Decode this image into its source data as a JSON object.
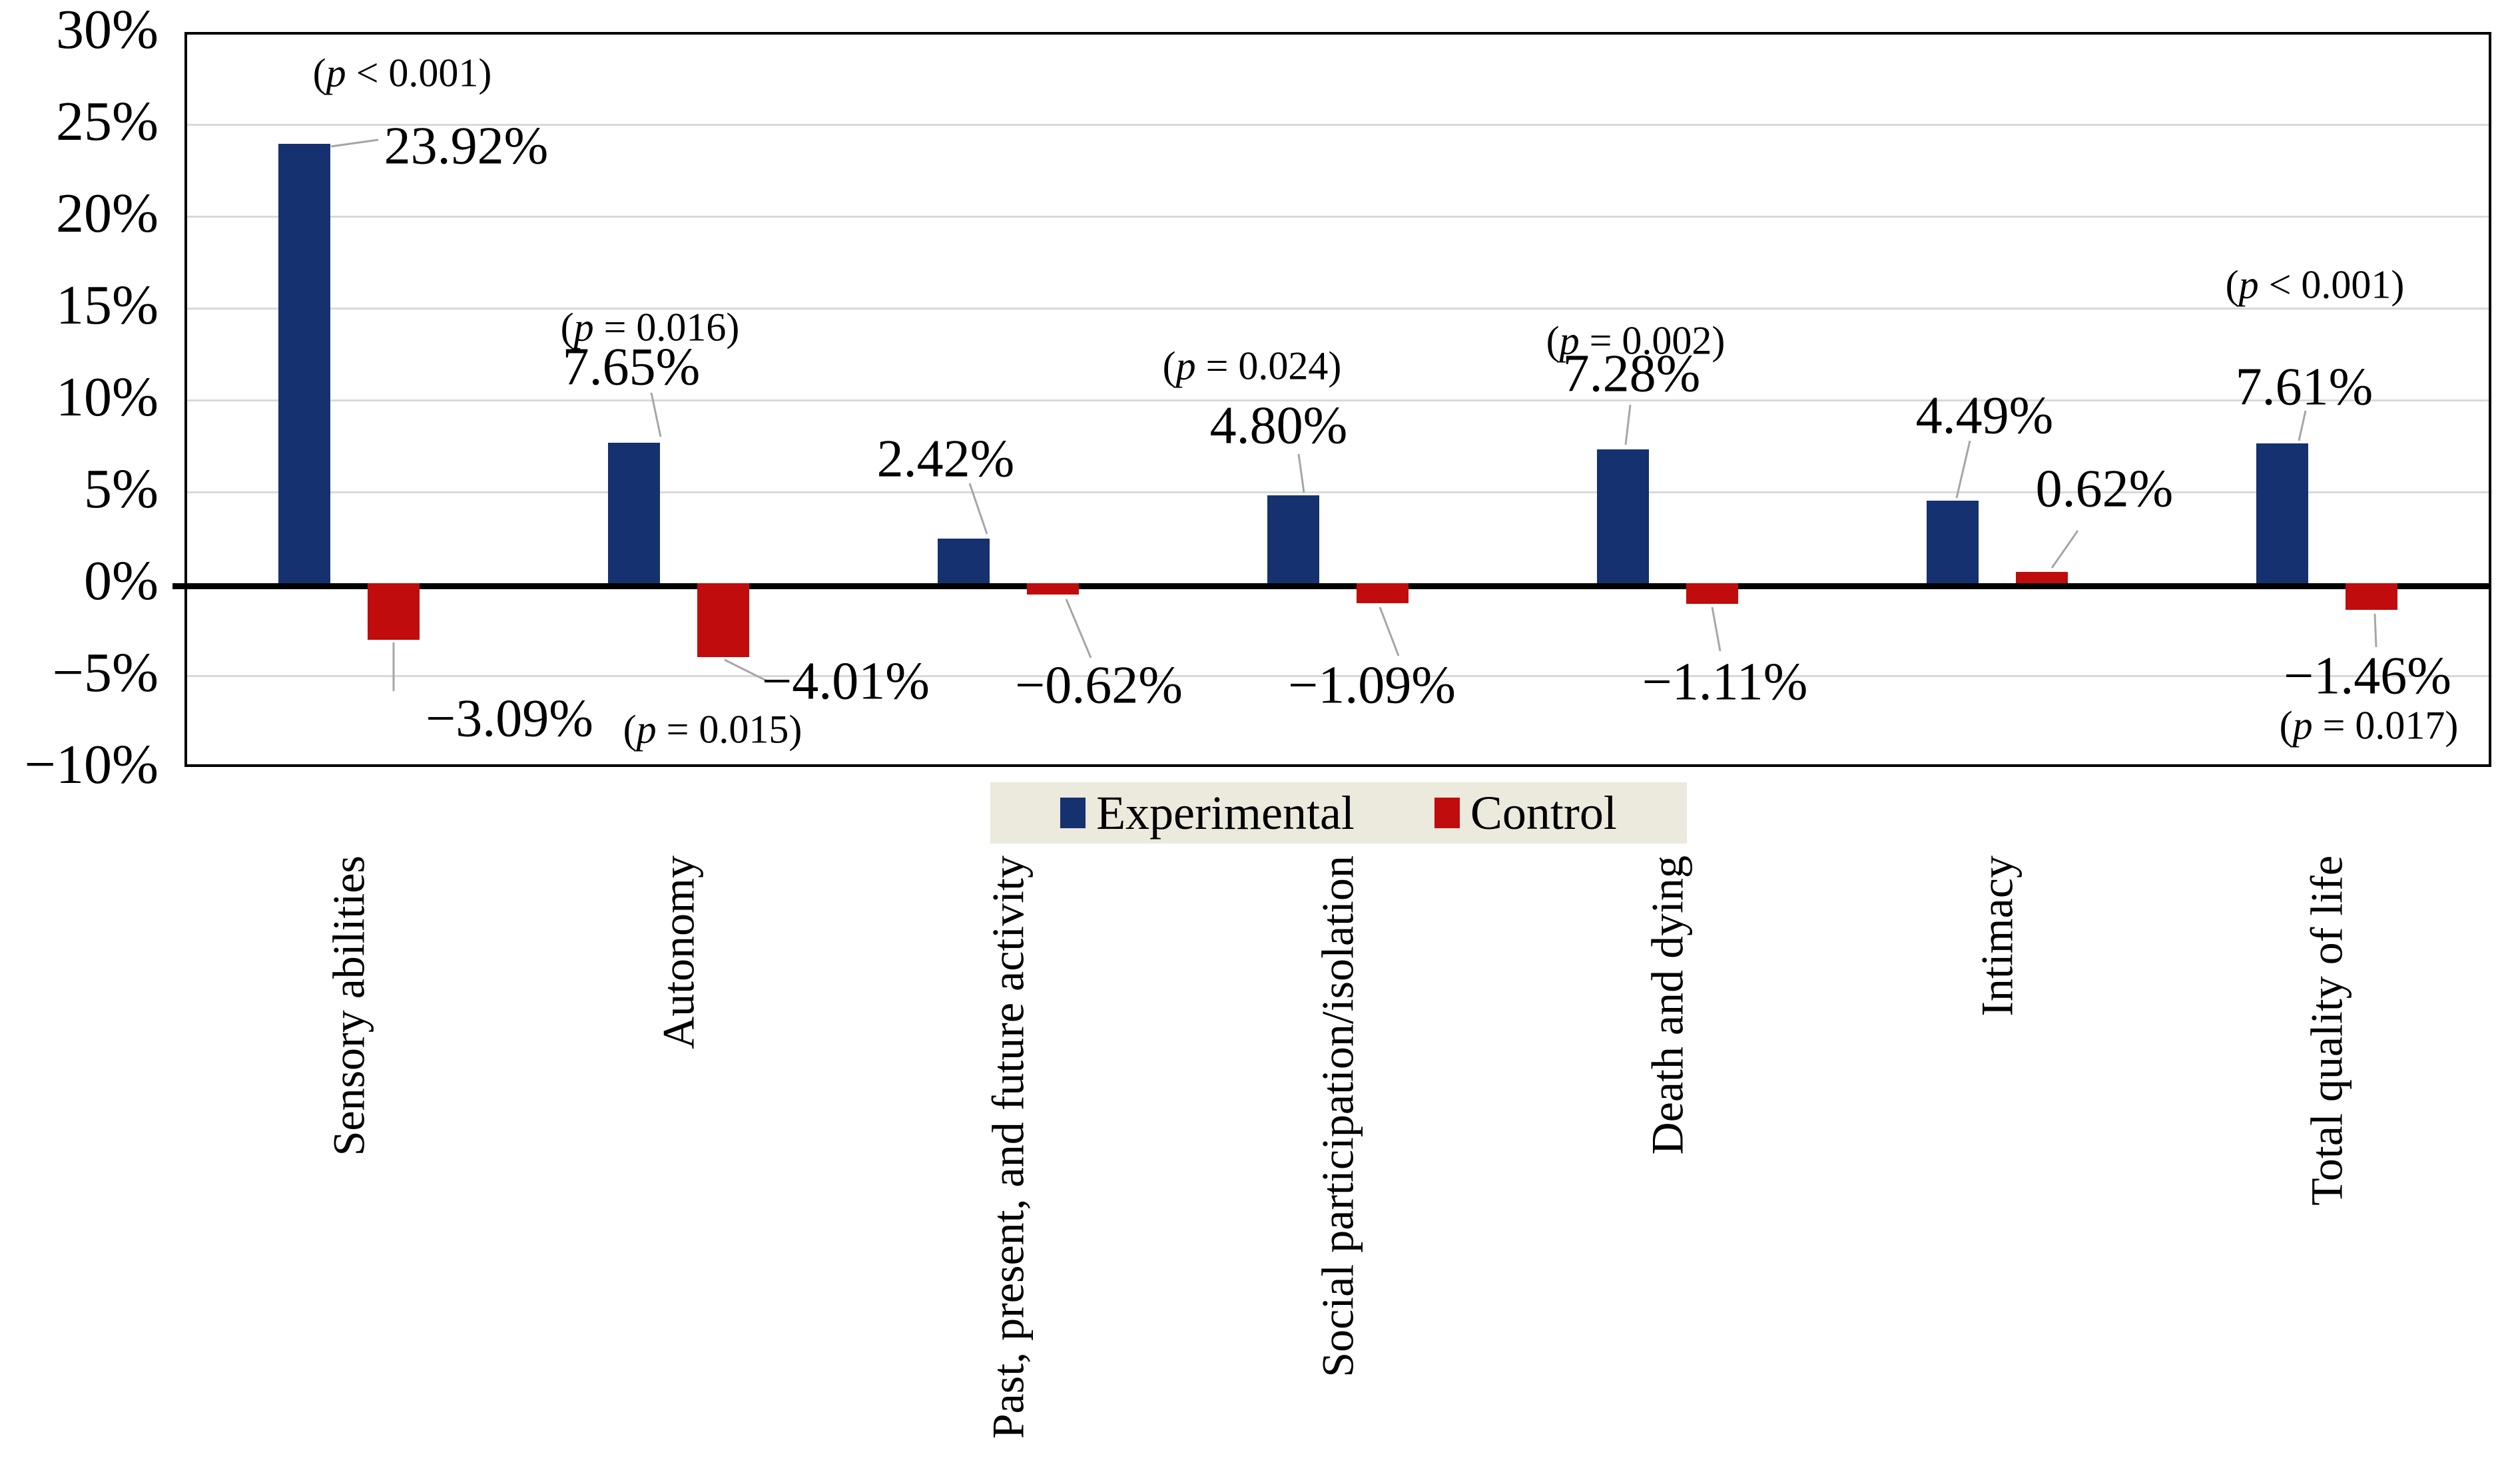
{
  "chart_data": {
    "type": "bar",
    "title": "",
    "xlabel": "",
    "ylabel": "",
    "categories": [
      "Sensory abilities",
      "Autonomy",
      "Past, present, and future activity",
      "Social participation/isolation",
      "Death and dying",
      "Intimacy",
      "Total quality of life"
    ],
    "series": [
      {
        "name": "Experimental",
        "color": "#15316f",
        "values": [
          23.92,
          7.65,
          2.42,
          4.8,
          7.28,
          4.49,
          7.61
        ],
        "labels": [
          "23.92%",
          "7.65%",
          "2.42%",
          "4.80%",
          "7.28%",
          "4.49%",
          "7.61%"
        ],
        "p_values": [
          "(p < 0.001)",
          "(p = 0.016)",
          null,
          "(p = 0.024)",
          "(p = 0.002)",
          null,
          "(p < 0.001)"
        ]
      },
      {
        "name": "Control",
        "color": "#c00c0c",
        "values": [
          -3.09,
          -4.01,
          -0.62,
          -1.09,
          -1.11,
          0.62,
          -1.46
        ],
        "labels": [
          "−3.09%",
          "−4.01%",
          "−0.62%",
          "−1.09%",
          "−1.11%",
          "0.62%",
          "−1.46%"
        ],
        "p_values": [
          null,
          "(p = 0.015)",
          null,
          null,
          null,
          null,
          "(p = 0.017)"
        ]
      }
    ],
    "y_axis": {
      "tick_labels": [
        "30%",
        "25%",
        "20%",
        "15%",
        "10%",
        "5%",
        "0%",
        "−5%",
        "−10%"
      ],
      "tick_values": [
        30,
        25,
        20,
        15,
        10,
        5,
        0,
        -5,
        -10
      ],
      "ylim": [
        -10,
        30
      ],
      "grid": true
    },
    "legend": {
      "position": "bottom",
      "entries": [
        "Experimental",
        "Control"
      ]
    }
  },
  "colors": {
    "experimental": "#15316f",
    "control": "#c00c0c",
    "legend_background": "#ece9dd",
    "gridline": "#d9d9d9",
    "axis": "#000000",
    "leader_line": "#a6a6a6",
    "text": "#000000"
  }
}
